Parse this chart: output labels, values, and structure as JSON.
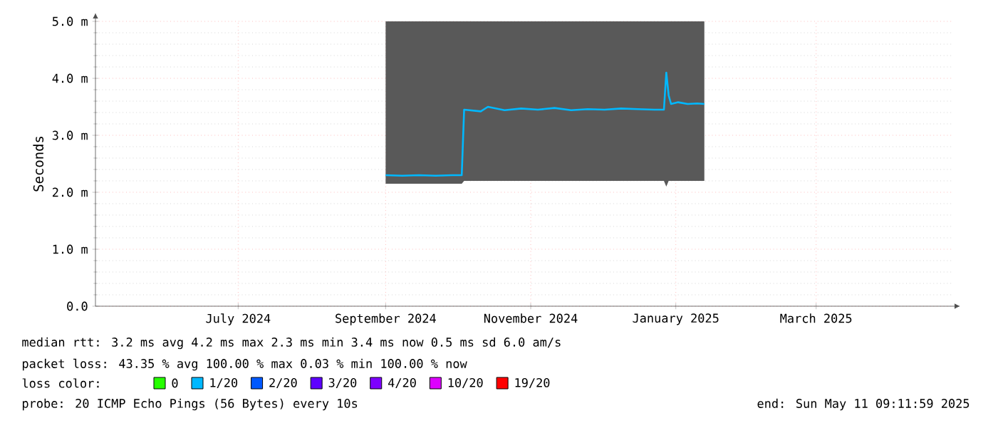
{
  "chart_data": {
    "type": "line",
    "ylabel": "Seconds",
    "legend_title": "loss color:",
    "legend": "bottom",
    "grid": true,
    "marker": "none",
    "line_style": "solid",
    "x": [
      "2024-09-15",
      "2024-09-22",
      "2024-09-29",
      "2024-10-06",
      "2024-10-13",
      "2024-10-17",
      "2024-10-18",
      "2024-10-25",
      "2024-10-28",
      "2024-11-04",
      "2024-11-11",
      "2024-11-18",
      "2024-11-25",
      "2024-12-02",
      "2024-12-09",
      "2024-12-16",
      "2024-12-23",
      "2024-12-30",
      "2025-01-06",
      "2025-01-10",
      "2025-01-11",
      "2025-01-12",
      "2025-01-13",
      "2025-01-16",
      "2025-01-20",
      "2025-01-24",
      "2025-01-27"
    ],
    "xlim": [
      "2024-05-16",
      "2025-05-11"
    ],
    "xticks": [
      {
        "value": "2024-07-15",
        "label": "July 2024"
      },
      {
        "value": "2024-09-15",
        "label": "September 2024"
      },
      {
        "value": "2024-11-15",
        "label": "November 2024"
      },
      {
        "value": "2025-01-15",
        "label": "January 2025"
      },
      {
        "value": "2025-03-15",
        "label": "March 2025"
      }
    ],
    "ylim": [
      0,
      5
    ],
    "yticks": [
      {
        "value": 0,
        "label": "0.0"
      },
      {
        "value": 1,
        "label": "1.0 m"
      },
      {
        "value": 2,
        "label": "2.0 m"
      },
      {
        "value": 3,
        "label": "3.0 m"
      },
      {
        "value": 4,
        "label": "4.0 m"
      },
      {
        "value": 5,
        "label": "5.0 m"
      }
    ],
    "series": [
      {
        "name": "0",
        "color": "#26ff00",
        "values": [
          null,
          null,
          null,
          null,
          null,
          null,
          null,
          null,
          null,
          null,
          null,
          null,
          null,
          null,
          null,
          null,
          null,
          null,
          null,
          null,
          null,
          null,
          null,
          null,
          null,
          null,
          null
        ]
      },
      {
        "name": "1/20",
        "color": "#00b8ff",
        "values": [
          2.3,
          2.29,
          2.3,
          2.29,
          2.3,
          2.3,
          3.45,
          3.42,
          3.5,
          3.44,
          3.47,
          3.45,
          3.48,
          3.44,
          3.46,
          3.45,
          3.47,
          3.46,
          3.45,
          3.45,
          4.1,
          3.7,
          3.55,
          3.58,
          3.55,
          3.56,
          3.55
        ],
        "lower": [
          2.15,
          2.15,
          2.15,
          2.15,
          2.15,
          2.15,
          2.2,
          2.2,
          2.2,
          2.2,
          2.2,
          2.2,
          2.2,
          2.2,
          2.2,
          2.2,
          2.2,
          2.2,
          2.2,
          2.2,
          2.1,
          2.2,
          2.2,
          2.2,
          2.2,
          2.2,
          2.2
        ],
        "upper": [
          5,
          5,
          5,
          5,
          5,
          5,
          5,
          5,
          5,
          5,
          5,
          5,
          5,
          5,
          5,
          5,
          5,
          5,
          5,
          5,
          5,
          5,
          5,
          5,
          5,
          5,
          5
        ]
      },
      {
        "name": "2/20",
        "color": "#0059ff",
        "values": [
          null,
          null,
          null,
          null,
          null,
          null,
          null,
          null,
          null,
          null,
          null,
          null,
          null,
          null,
          null,
          null,
          null,
          null,
          null,
          null,
          null,
          null,
          null,
          null,
          null,
          null,
          null
        ]
      },
      {
        "name": "3/20",
        "color": "#5e00ff",
        "values": [
          null,
          null,
          null,
          null,
          null,
          null,
          null,
          null,
          null,
          null,
          null,
          null,
          null,
          null,
          null,
          null,
          null,
          null,
          null,
          null,
          null,
          null,
          null,
          null,
          null,
          null,
          null
        ]
      },
      {
        "name": "4/20",
        "color": "#7e00ff",
        "values": [
          null,
          null,
          null,
          null,
          null,
          null,
          null,
          null,
          null,
          null,
          null,
          null,
          null,
          null,
          null,
          null,
          null,
          null,
          null,
          null,
          null,
          null,
          null,
          null,
          null,
          null,
          null
        ]
      },
      {
        "name": "10/20",
        "color": "#dd00ff",
        "values": [
          null,
          null,
          null,
          null,
          null,
          null,
          null,
          null,
          null,
          null,
          null,
          null,
          null,
          null,
          null,
          null,
          null,
          null,
          null,
          null,
          null,
          null,
          null,
          null,
          null,
          null,
          null
        ]
      },
      {
        "name": "19/20",
        "color": "#ff0000",
        "values": [
          null,
          null,
          null,
          null,
          null,
          null,
          null,
          null,
          null,
          null,
          null,
          null,
          null,
          null,
          null,
          null,
          null,
          null,
          null,
          null,
          null,
          null,
          null,
          null,
          null,
          null,
          null
        ]
      }
    ],
    "annotations": [
      "median rtt:  3.2 ms avg  4.2 ms max  2.3 ms min  3.4 ms now  0.5 ms sd  6.0   am/s",
      "packet loss: 43.35 % avg  100.00 % max  0.03 % min  100.00 % now",
      "probe:       20 ICMP Echo Pings (56 Bytes) every 10s",
      "end: Sun May 11 09:11:59 2025"
    ]
  }
}
